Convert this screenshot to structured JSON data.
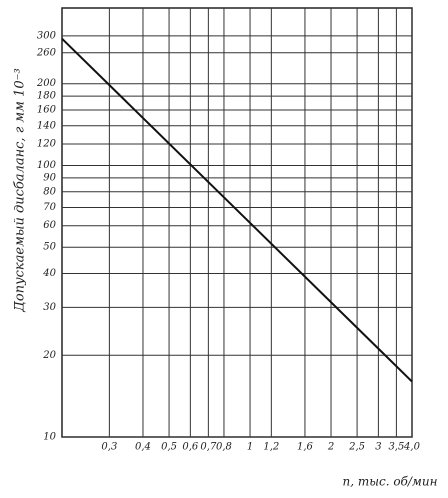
{
  "chart_data": {
    "type": "line",
    "y_label": "Допускаемый дисбаланс, г мм 10⁻³",
    "x_label": "n, тыс. об/мин",
    "x": [
      0.2,
      4
    ],
    "values": [
      293,
      16
    ],
    "color": "#111111",
    "xscale": "log",
    "yscale": "log",
    "grid": true,
    "xlim": [
      0.2,
      4
    ],
    "ylim": [
      10,
      380
    ],
    "xticks": [
      {
        "value": 0.3,
        "label": "0,3"
      },
      {
        "value": 0.4,
        "label": "0,4"
      },
      {
        "value": 0.5,
        "label": "0,5"
      },
      {
        "value": 0.6,
        "label": "0,6"
      },
      {
        "value": 0.7,
        "label": "0,7"
      },
      {
        "value": 0.8,
        "label": "0,8"
      },
      1,
      {
        "value": 1.2,
        "label": "1,2"
      },
      {
        "value": 1.6,
        "label": "1,6"
      },
      2,
      {
        "value": 2.5,
        "label": "2,5"
      },
      3,
      {
        "value": 3.5,
        "label": "3,5"
      },
      {
        "value": 4,
        "label": "4,0"
      }
    ],
    "yticks": [
      10,
      20,
      30,
      40,
      50,
      60,
      70,
      80,
      90,
      100,
      120,
      140,
      160,
      180,
      200,
      260,
      300
    ]
  }
}
